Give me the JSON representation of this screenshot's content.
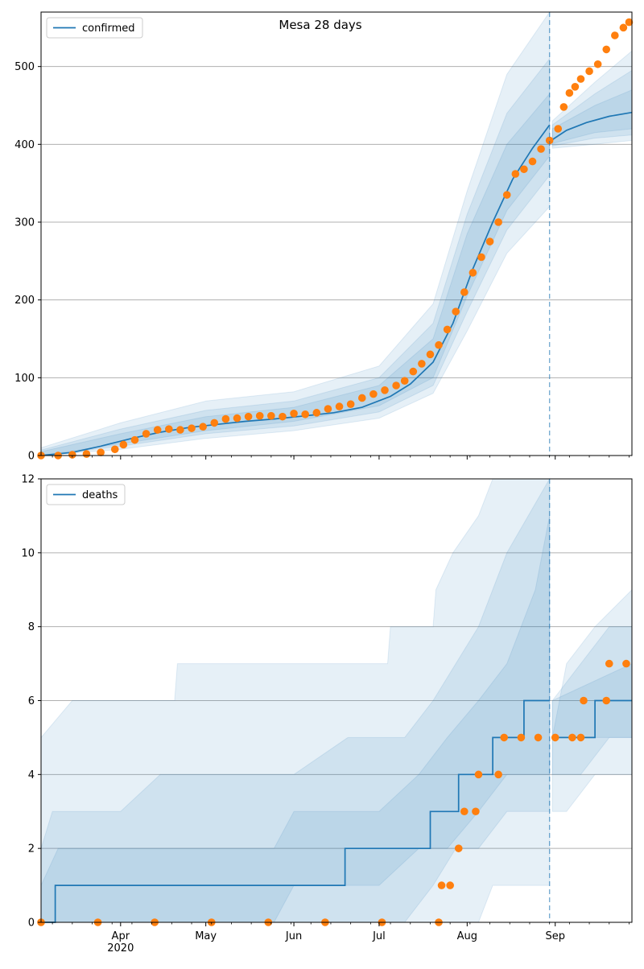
{
  "colors": {
    "line": "#1f77b4",
    "observed": "#ff7f0e",
    "band": "#1f77b4",
    "grid": "#b0b0b0",
    "axis": "#000000"
  },
  "chart_data": [
    {
      "type": "line",
      "title": "Mesa 28 days",
      "xlabel": "",
      "ylabel": "",
      "x_axis": {
        "type": "date",
        "range": [
          "2020-03-04",
          "2020-09-28"
        ],
        "tick_labels": [
          {
            "date": "2020-04-01",
            "label": "Apr",
            "year": "2020"
          },
          {
            "date": "2020-05-01",
            "label": "May"
          },
          {
            "date": "2020-06-01",
            "label": "Jun"
          },
          {
            "date": "2020-07-01",
            "label": "Jul"
          },
          {
            "date": "2020-08-01",
            "label": "Aug"
          },
          {
            "date": "2020-09-01",
            "label": "Sep"
          }
        ],
        "tick_labels_visible": false
      },
      "ylim": [
        0,
        570
      ],
      "yticks": [
        0,
        100,
        200,
        300,
        400,
        500
      ],
      "grid": "horizontal",
      "legend": {
        "position": "top-left",
        "entries": [
          "confirmed"
        ]
      },
      "forecast_start": "2020-08-30",
      "series": [
        {
          "name": "confirmed",
          "role": "model median",
          "points": [
            [
              "2020-03-04",
              0
            ],
            [
              "2020-03-15",
              4
            ],
            [
              "2020-03-25",
              12
            ],
            [
              "2020-04-05",
              22
            ],
            [
              "2020-04-15",
              30
            ],
            [
              "2020-04-25",
              36
            ],
            [
              "2020-05-05",
              40
            ],
            [
              "2020-05-15",
              44
            ],
            [
              "2020-05-25",
              47
            ],
            [
              "2020-06-05",
              51
            ],
            [
              "2020-06-15",
              55
            ],
            [
              "2020-06-25",
              62
            ],
            [
              "2020-07-05",
              76
            ],
            [
              "2020-07-12",
              92
            ],
            [
              "2020-07-20",
              120
            ],
            [
              "2020-07-27",
              170
            ],
            [
              "2020-08-03",
              240
            ],
            [
              "2020-08-10",
              300
            ],
            [
              "2020-08-17",
              355
            ],
            [
              "2020-08-24",
              395
            ],
            [
              "2020-08-30",
              425
            ],
            [
              "2020-08-31",
              406
            ],
            [
              "2020-09-05",
              418
            ],
            [
              "2020-09-12",
              428
            ],
            [
              "2020-09-20",
              436
            ],
            [
              "2020-09-28",
              441
            ]
          ]
        }
      ],
      "bands": [
        {
          "level": "outer",
          "points": [
            [
              "2020-03-04",
              0,
              10
            ],
            [
              "2020-04-01",
              8,
              42
            ],
            [
              "2020-05-01",
              22,
              70
            ],
            [
              "2020-06-01",
              32,
              82
            ],
            [
              "2020-07-01",
              48,
              115
            ],
            [
              "2020-07-20",
              80,
              195
            ],
            [
              "2020-08-01",
              160,
              340
            ],
            [
              "2020-08-15",
              260,
              490
            ],
            [
              "2020-08-30",
              320,
              570
            ],
            [
              "2020-08-31",
              395,
              430
            ],
            [
              "2020-09-15",
              400,
              480
            ],
            [
              "2020-09-28",
              405,
              520
            ]
          ]
        },
        {
          "level": "middle",
          "points": [
            [
              "2020-03-04",
              0,
              7
            ],
            [
              "2020-04-01",
              12,
              34
            ],
            [
              "2020-05-01",
              28,
              58
            ],
            [
              "2020-06-01",
              38,
              70
            ],
            [
              "2020-07-01",
              56,
              100
            ],
            [
              "2020-07-20",
              90,
              170
            ],
            [
              "2020-08-01",
              185,
              310
            ],
            [
              "2020-08-15",
              290,
              440
            ],
            [
              "2020-08-30",
              360,
              510
            ],
            [
              "2020-08-31",
              398,
              425
            ],
            [
              "2020-09-15",
              408,
              465
            ],
            [
              "2020-09-28",
              412,
              495
            ]
          ]
        },
        {
          "level": "inner",
          "points": [
            [
              "2020-03-04",
              0,
              5
            ],
            [
              "2020-04-01",
              15,
              28
            ],
            [
              "2020-05-01",
              32,
              50
            ],
            [
              "2020-06-01",
              44,
              62
            ],
            [
              "2020-07-01",
              64,
              90
            ],
            [
              "2020-07-20",
              100,
              150
            ],
            [
              "2020-08-01",
              205,
              285
            ],
            [
              "2020-08-15",
              315,
              400
            ],
            [
              "2020-08-30",
              385,
              465
            ],
            [
              "2020-08-31",
              401,
              420
            ],
            [
              "2020-09-15",
              415,
              450
            ],
            [
              "2020-09-28",
              420,
              470
            ]
          ]
        }
      ],
      "observed": {
        "marker": "circle",
        "points": [
          [
            "2020-03-04",
            0
          ],
          [
            "2020-03-10",
            0
          ],
          [
            "2020-03-15",
            1
          ],
          [
            "2020-03-20",
            2
          ],
          [
            "2020-03-25",
            4
          ],
          [
            "2020-03-30",
            8
          ],
          [
            "2020-04-02",
            14
          ],
          [
            "2020-04-06",
            20
          ],
          [
            "2020-04-10",
            28
          ],
          [
            "2020-04-14",
            33
          ],
          [
            "2020-04-18",
            34
          ],
          [
            "2020-04-22",
            33
          ],
          [
            "2020-04-26",
            35
          ],
          [
            "2020-04-30",
            37
          ],
          [
            "2020-05-04",
            42
          ],
          [
            "2020-05-08",
            47
          ],
          [
            "2020-05-12",
            48
          ],
          [
            "2020-05-16",
            50
          ],
          [
            "2020-05-20",
            51
          ],
          [
            "2020-05-24",
            51
          ],
          [
            "2020-05-28",
            50
          ],
          [
            "2020-06-01",
            54
          ],
          [
            "2020-06-05",
            53
          ],
          [
            "2020-06-09",
            55
          ],
          [
            "2020-06-13",
            60
          ],
          [
            "2020-06-17",
            63
          ],
          [
            "2020-06-21",
            66
          ],
          [
            "2020-06-25",
            74
          ],
          [
            "2020-06-29",
            79
          ],
          [
            "2020-07-03",
            84
          ],
          [
            "2020-07-07",
            90
          ],
          [
            "2020-07-10",
            96
          ],
          [
            "2020-07-13",
            108
          ],
          [
            "2020-07-16",
            118
          ],
          [
            "2020-07-19",
            130
          ],
          [
            "2020-07-22",
            142
          ],
          [
            "2020-07-25",
            162
          ],
          [
            "2020-07-28",
            185
          ],
          [
            "2020-07-31",
            210
          ],
          [
            "2020-08-03",
            235
          ],
          [
            "2020-08-06",
            255
          ],
          [
            "2020-08-09",
            275
          ],
          [
            "2020-08-12",
            300
          ],
          [
            "2020-08-15",
            335
          ],
          [
            "2020-08-18",
            362
          ],
          [
            "2020-08-21",
            368
          ],
          [
            "2020-08-24",
            378
          ],
          [
            "2020-08-27",
            394
          ],
          [
            "2020-08-30",
            405
          ],
          [
            "2020-09-02",
            420
          ],
          [
            "2020-09-04",
            448
          ],
          [
            "2020-09-06",
            466
          ],
          [
            "2020-09-08",
            474
          ],
          [
            "2020-09-10",
            484
          ],
          [
            "2020-09-13",
            494
          ],
          [
            "2020-09-16",
            503
          ],
          [
            "2020-09-19",
            522
          ],
          [
            "2020-09-22",
            540
          ],
          [
            "2020-09-25",
            550
          ],
          [
            "2020-09-27",
            557
          ]
        ]
      }
    },
    {
      "type": "line",
      "title": "",
      "xlabel": "",
      "ylabel": "",
      "x_axis": {
        "type": "date",
        "range": [
          "2020-03-04",
          "2020-09-28"
        ],
        "tick_labels": [
          {
            "date": "2020-04-01",
            "label": "Apr",
            "year": "2020"
          },
          {
            "date": "2020-05-01",
            "label": "May"
          },
          {
            "date": "2020-06-01",
            "label": "Jun"
          },
          {
            "date": "2020-07-01",
            "label": "Jul"
          },
          {
            "date": "2020-08-01",
            "label": "Aug"
          },
          {
            "date": "2020-09-01",
            "label": "Sep"
          }
        ],
        "tick_labels_visible": true
      },
      "ylim": [
        0,
        12
      ],
      "yticks": [
        0,
        2,
        4,
        6,
        8,
        10,
        12
      ],
      "grid": "horizontal",
      "legend": {
        "position": "top-left",
        "entries": [
          "deaths"
        ]
      },
      "forecast_start": "2020-08-30",
      "series": [
        {
          "name": "deaths",
          "role": "model median (step)",
          "points": [
            [
              "2020-03-04",
              0
            ],
            [
              "2020-03-09",
              1
            ],
            [
              "2020-06-19",
              2
            ],
            [
              "2020-07-19",
              3
            ],
            [
              "2020-07-29",
              4
            ],
            [
              "2020-08-10",
              5
            ],
            [
              "2020-08-21",
              6
            ],
            [
              "2020-08-30",
              6
            ],
            [
              "2020-08-31",
              5
            ],
            [
              "2020-09-04",
              5
            ],
            [
              "2020-09-15",
              6
            ],
            [
              "2020-09-28",
              6
            ]
          ]
        }
      ],
      "bands": [
        {
          "level": "outer",
          "points": [
            [
              "2020-03-04",
              0,
              5
            ],
            [
              "2020-03-15",
              0,
              6
            ],
            [
              "2020-04-20",
              0,
              6
            ],
            [
              "2020-04-21",
              0,
              7
            ],
            [
              "2020-07-04",
              0,
              7
            ],
            [
              "2020-07-05",
              0,
              8
            ],
            [
              "2020-07-20",
              0,
              8
            ],
            [
              "2020-07-21",
              0,
              9
            ],
            [
              "2020-07-27",
              0,
              10
            ],
            [
              "2020-08-05",
              0,
              11
            ],
            [
              "2020-08-10",
              1,
              12
            ],
            [
              "2020-08-30",
              1,
              12
            ],
            [
              "2020-08-31",
              3,
              5
            ],
            [
              "2020-09-05",
              3,
              7
            ],
            [
              "2020-09-15",
              4,
              8
            ],
            [
              "2020-09-28",
              4,
              9
            ]
          ]
        },
        {
          "level": "middle",
          "points": [
            [
              "2020-03-04",
              0,
              2
            ],
            [
              "2020-03-08",
              0,
              3
            ],
            [
              "2020-04-01",
              0,
              3
            ],
            [
              "2020-04-15",
              0,
              4
            ],
            [
              "2020-06-01",
              0,
              4
            ],
            [
              "2020-06-20",
              0,
              5
            ],
            [
              "2020-07-10",
              0,
              5
            ],
            [
              "2020-07-20",
              1,
              6
            ],
            [
              "2020-07-28",
              2,
              7
            ],
            [
              "2020-08-05",
              2,
              8
            ],
            [
              "2020-08-15",
              3,
              10
            ],
            [
              "2020-08-30",
              3,
              12
            ],
            [
              "2020-08-31",
              4,
              6
            ],
            [
              "2020-09-10",
              4,
              7
            ],
            [
              "2020-09-20",
              5,
              8
            ],
            [
              "2020-09-28",
              5,
              8
            ]
          ]
        },
        {
          "level": "inner",
          "points": [
            [
              "2020-03-04",
              0,
              1
            ],
            [
              "2020-03-10",
              0,
              2
            ],
            [
              "2020-05-25",
              0,
              2
            ],
            [
              "2020-06-01",
              1,
              3
            ],
            [
              "2020-07-01",
              1,
              3
            ],
            [
              "2020-07-15",
              2,
              4
            ],
            [
              "2020-07-25",
              2,
              5
            ],
            [
              "2020-08-05",
              3,
              6
            ],
            [
              "2020-08-15",
              4,
              7
            ],
            [
              "2020-08-25",
              4,
              9
            ],
            [
              "2020-08-30",
              4,
              11
            ],
            [
              "2020-08-31",
              5,
              6
            ],
            [
              "2020-09-28",
              5,
              7
            ]
          ]
        }
      ],
      "observed": {
        "marker": "circle",
        "points": [
          [
            "2020-03-04",
            0
          ],
          [
            "2020-03-24",
            0
          ],
          [
            "2020-04-13",
            0
          ],
          [
            "2020-05-03",
            0
          ],
          [
            "2020-05-23",
            0
          ],
          [
            "2020-06-12",
            0
          ],
          [
            "2020-07-02",
            0
          ],
          [
            "2020-07-22",
            0
          ],
          [
            "2020-07-23",
            1
          ],
          [
            "2020-07-26",
            1
          ],
          [
            "2020-07-29",
            2
          ],
          [
            "2020-07-31",
            3
          ],
          [
            "2020-08-04",
            3
          ],
          [
            "2020-08-05",
            4
          ],
          [
            "2020-08-12",
            4
          ],
          [
            "2020-08-14",
            5
          ],
          [
            "2020-08-20",
            5
          ],
          [
            "2020-08-26",
            5
          ],
          [
            "2020-09-01",
            5
          ],
          [
            "2020-09-07",
            5
          ],
          [
            "2020-09-10",
            5
          ],
          [
            "2020-09-11",
            6
          ],
          [
            "2020-09-19",
            6
          ],
          [
            "2020-09-20",
            7
          ],
          [
            "2020-09-26",
            7
          ]
        ]
      }
    }
  ]
}
